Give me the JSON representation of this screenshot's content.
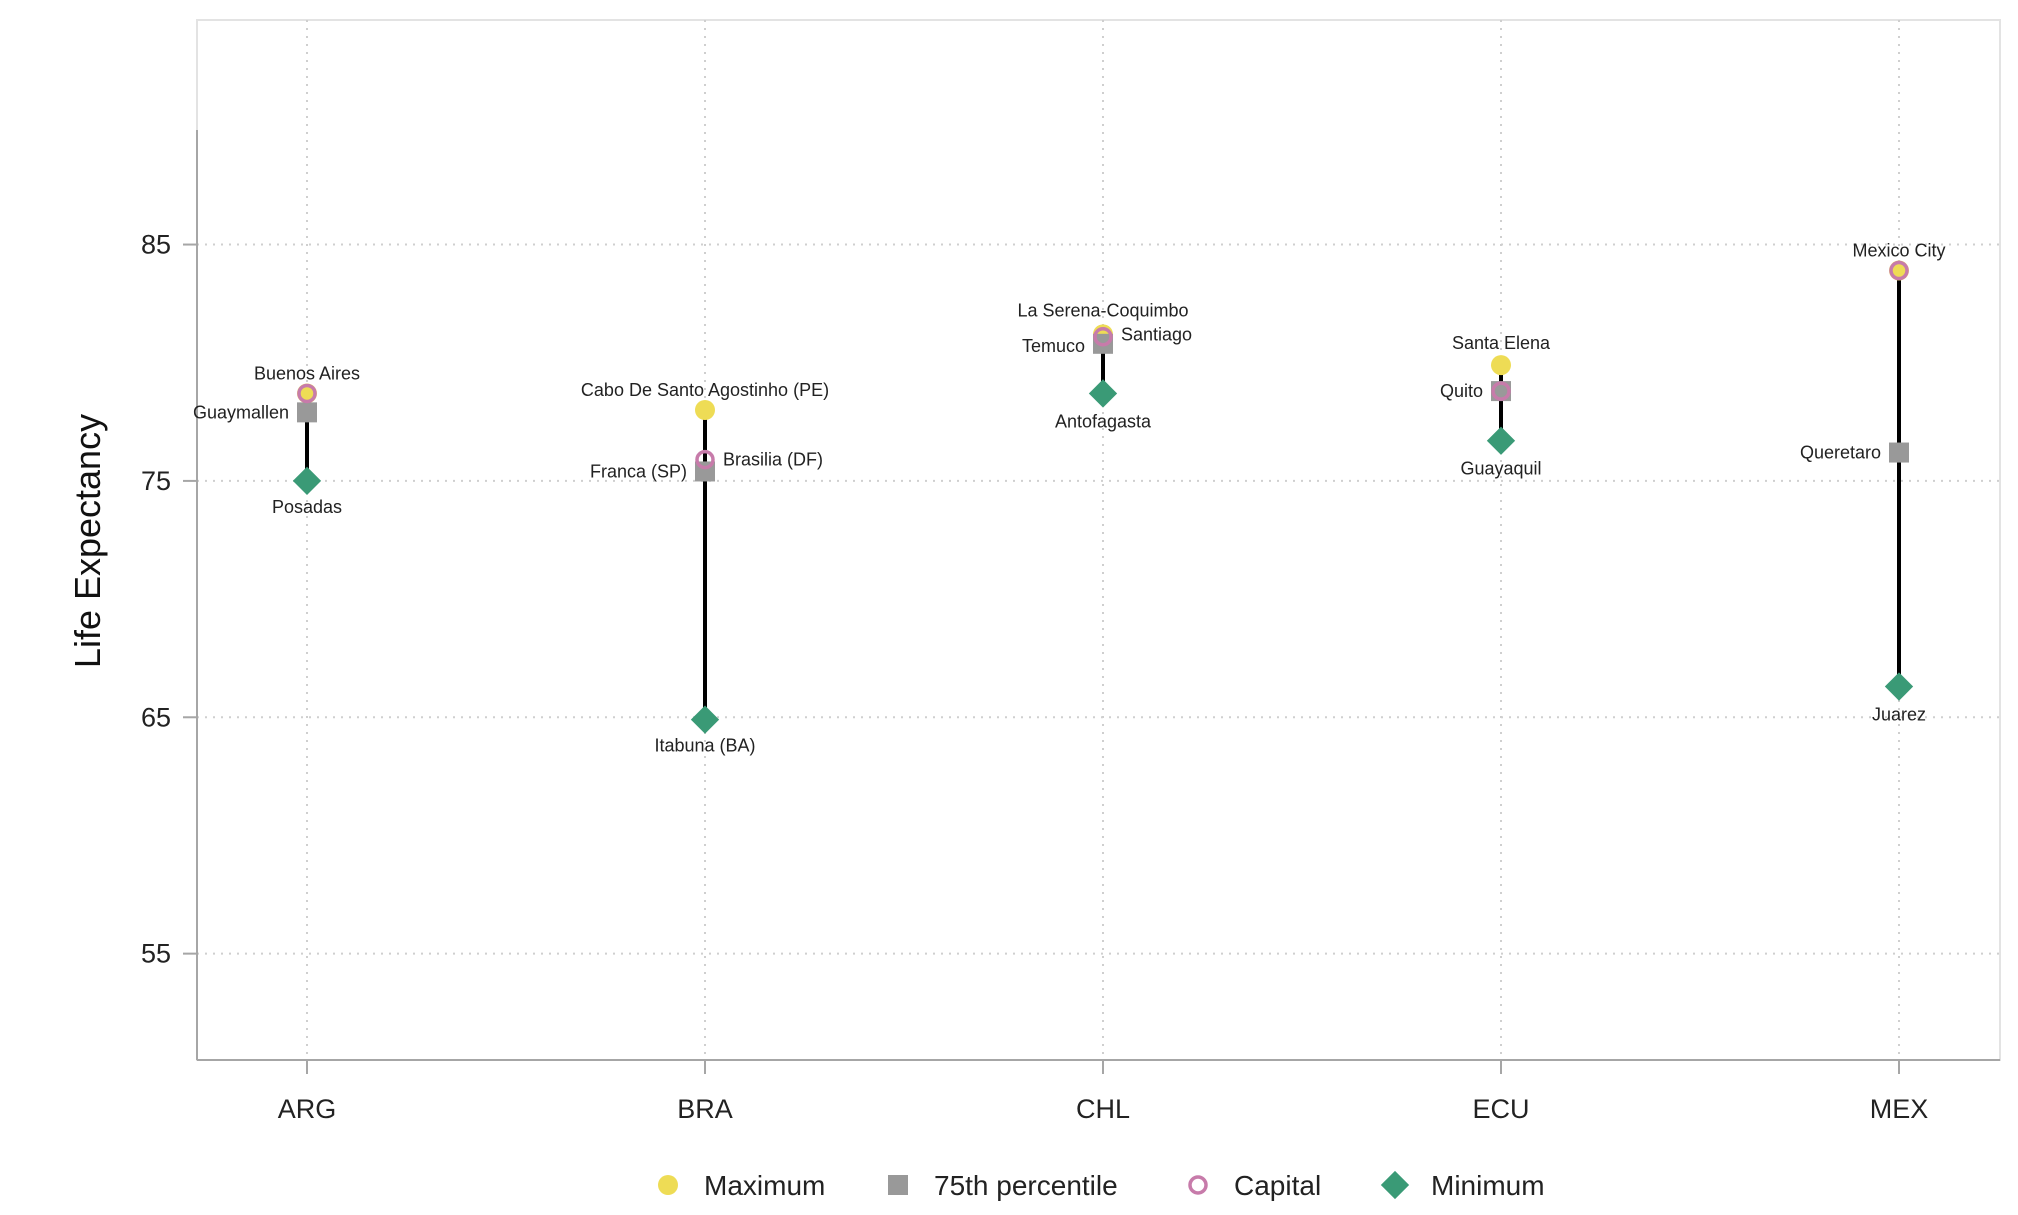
{
  "chart_data": {
    "type": "scatter",
    "ylabel": "Life Expectancy",
    "xlabel": "",
    "categories": [
      "ARG",
      "BRA",
      "CHL",
      "ECU",
      "MEX"
    ],
    "ylim": [
      50.5,
      94.5
    ],
    "yticks": [
      55,
      65,
      75,
      85
    ],
    "grid": true,
    "legend_position": "bottom",
    "series": [
      {
        "name": "Maximum",
        "key": "max",
        "color": "#EEDC55",
        "marker": "circle"
      },
      {
        "name": "75th percentile",
        "key": "p75",
        "color": "#999999",
        "marker": "square"
      },
      {
        "name": "Capital",
        "key": "capital",
        "color": "#C77BAA",
        "marker": "ring"
      },
      {
        "name": "Minimum",
        "key": "min",
        "color": "#3A9A76",
        "marker": "diamond"
      }
    ],
    "countries": [
      {
        "code": "ARG",
        "max": {
          "value": 78.7,
          "label": "Buenos Aires"
        },
        "p75": {
          "value": 77.9,
          "label": "Guaymallen"
        },
        "capital": {
          "value": 78.7,
          "label": ""
        },
        "min": {
          "value": 75.0,
          "label": "Posadas"
        }
      },
      {
        "code": "BRA",
        "max": {
          "value": 78.0,
          "label": "Cabo De Santo Agostinho (PE)"
        },
        "p75": {
          "value": 75.4,
          "label": "Franca (SP)"
        },
        "capital": {
          "value": 75.9,
          "label": "Brasilia (DF)"
        },
        "min": {
          "value": 64.9,
          "label": "Itabuna (BA)"
        }
      },
      {
        "code": "CHL",
        "max": {
          "value": 81.2,
          "label": "La Serena-Coquimbo"
        },
        "p75": {
          "value": 80.8,
          "label": "Temuco"
        },
        "capital": {
          "value": 81.1,
          "label": "Santiago"
        },
        "min": {
          "value": 78.7,
          "label": "Antofagasta"
        }
      },
      {
        "code": "ECU",
        "max": {
          "value": 79.9,
          "label": "Santa Elena"
        },
        "p75": {
          "value": 78.8,
          "label": "Quito"
        },
        "capital": {
          "value": 78.8,
          "label": ""
        },
        "min": {
          "value": 76.7,
          "label": "Guayaquil"
        }
      },
      {
        "code": "MEX",
        "max": {
          "value": 83.9,
          "label": "Mexico City"
        },
        "p75": {
          "value": 76.2,
          "label": "Queretaro"
        },
        "capital": {
          "value": 83.9,
          "label": ""
        },
        "min": {
          "value": 66.3,
          "label": "Juarez"
        }
      }
    ]
  }
}
